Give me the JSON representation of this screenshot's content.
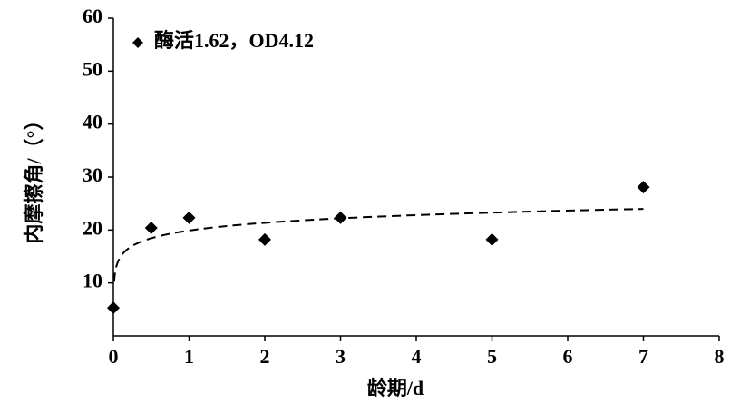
{
  "chart_data": {
    "type": "scatter",
    "xlabel": "龄期/d",
    "ylabel": "内摩擦角/（°）",
    "series": [
      {
        "name": "酶活1.62，OD4.12",
        "color": "#000000",
        "x": [
          0,
          0.5,
          1,
          2,
          3,
          5,
          7
        ],
        "values": [
          5.3,
          20.4,
          22.3,
          18.2,
          22.3,
          18.2,
          28.1
        ]
      }
    ],
    "trendline": {
      "type": "log",
      "a": 2.1,
      "b": 19.9,
      "x_range": [
        0.01,
        7
      ]
    },
    "xlim": [
      0,
      8
    ],
    "xticks": [
      0,
      1,
      2,
      3,
      4,
      5,
      6,
      7,
      8
    ],
    "ylim": [
      0,
      60
    ],
    "yticks": [
      10,
      20,
      30,
      40,
      50,
      60
    ],
    "legend": "top-left",
    "grid": false
  }
}
